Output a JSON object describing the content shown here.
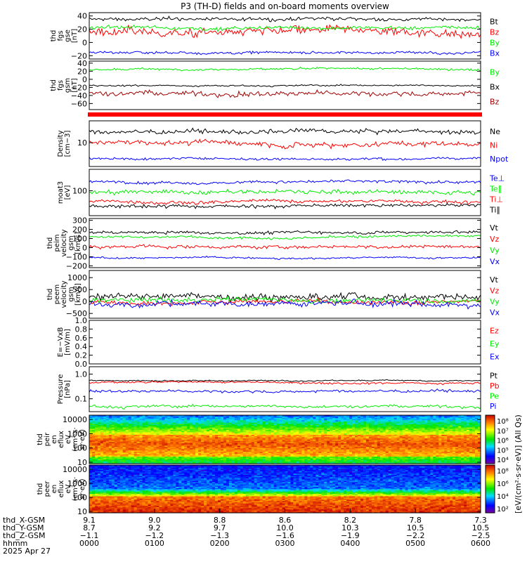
{
  "title": "P3 (TH-D) fields and on-board moments overview",
  "date_label": "2025 Apr 27",
  "colors": {
    "black": "#000000",
    "red": "#ff0000",
    "green": "#00ee00",
    "blue": "#0000ff",
    "darkred": "#a00000"
  },
  "chart_data": [
    {
      "id": "p1",
      "type": "line",
      "ylabel": [
        "thd",
        "fgs",
        "gse",
        "[nT]"
      ],
      "ylim": [
        -25,
        45
      ],
      "ticks": [
        "40",
        "20",
        "0",
        "−20"
      ],
      "tick_values": [
        40,
        20,
        0,
        -20
      ],
      "series": [
        {
          "name": "Bt",
          "color": "#000000",
          "base": 35,
          "amp": 4
        },
        {
          "name": "Bz",
          "color": "#ff0000",
          "base": 15,
          "amp": 10
        },
        {
          "name": "By",
          "color": "#00ee00",
          "base": 22,
          "amp": 4
        },
        {
          "name": "Bx",
          "color": "#0000ff",
          "base": -15,
          "amp": 3
        }
      ],
      "legend": [
        "Bt",
        "Bz",
        "By",
        "Bx"
      ]
    },
    {
      "id": "p2",
      "type": "line",
      "ylabel": [
        "thd",
        "fgs",
        "gsm",
        "[nT]"
      ],
      "ylim": [
        -75,
        45
      ],
      "ticks": [
        "40",
        "20",
        "0",
        "−20",
        "−40",
        "−60"
      ],
      "tick_values": [
        40,
        20,
        0,
        -20,
        -40,
        -60
      ],
      "series": [
        {
          "name": "By",
          "color": "#00ee00",
          "base": 25,
          "amp": 4
        },
        {
          "name": "Bx",
          "color": "#000000",
          "base": -15,
          "amp": 3
        },
        {
          "name": "Bz",
          "color": "#a00000",
          "base": -35,
          "amp": 10
        }
      ],
      "legend": [
        "By",
        "Bx",
        "Bz"
      ]
    },
    {
      "id": "p3",
      "type": "line",
      "log": true,
      "ylabel": [
        "Density",
        "[cm−3]"
      ],
      "ylim": [
        3,
        30
      ],
      "ticks": [
        "10"
      ],
      "tick_values": [
        10
      ],
      "series": [
        {
          "name": "Ne",
          "color": "#000000",
          "base": 17,
          "amp": 3
        },
        {
          "name": "Ni",
          "color": "#ff0000",
          "base": 10,
          "amp": 2
        },
        {
          "name": "Npot",
          "color": "#0000ff",
          "base": 4.5,
          "amp": 0.4
        }
      ],
      "legend": [
        "Ne",
        "Ni",
        "Npot"
      ]
    },
    {
      "id": "p4",
      "type": "line",
      "log": true,
      "ylabel": [
        "moat3",
        "[eV]"
      ],
      "ylim": [
        20,
        400
      ],
      "ticks": [
        "100"
      ],
      "tick_values": [
        100
      ],
      "series": [
        {
          "name": "Te⊥",
          "color": "#0000ff",
          "base": 180,
          "amp": 25
        },
        {
          "name": "Te∥",
          "color": "#00ee00",
          "base": 90,
          "amp": 20
        },
        {
          "name": "Ti⊥",
          "color": "#ff0000",
          "base": 50,
          "amp": 8
        },
        {
          "name": "Ti∥",
          "color": "#000000",
          "base": 38,
          "amp": 6
        }
      ],
      "legend": [
        "Te⊥",
        "Te∥",
        "Ti⊥",
        "Ti∥"
      ]
    },
    {
      "id": "p5",
      "type": "line",
      "ylabel": [
        "thd",
        "peim",
        "velocity",
        "gsm",
        "[km/s]"
      ],
      "ylim": [
        -220,
        320
      ],
      "ticks": [
        "300",
        "200",
        "100",
        "0",
        "−100",
        "−200"
      ],
      "tick_values": [
        300,
        200,
        100,
        0,
        -100,
        -200
      ],
      "series": [
        {
          "name": "Vt",
          "color": "#000000",
          "base": 170,
          "amp": 25
        },
        {
          "name": "Vz",
          "color": "#ff0000",
          "base": 10,
          "amp": 30
        },
        {
          "name": "Vy",
          "color": "#00ee00",
          "base": 120,
          "amp": 20
        },
        {
          "name": "Vx",
          "color": "#0000ff",
          "base": -110,
          "amp": 15
        }
      ],
      "legend": [
        "Vt",
        "Vz",
        "Vy",
        "Vx"
      ]
    },
    {
      "id": "p6",
      "type": "line",
      "ylabel": [
        "thd",
        "peem",
        "velocity",
        "gsm",
        "[km/s]"
      ],
      "ylim": [
        -700,
        1300
      ],
      "ticks": [
        "1000",
        "500",
        "0",
        "−500"
      ],
      "tick_values": [
        1000,
        500,
        0,
        -500
      ],
      "series": [
        {
          "name": "Vt",
          "color": "#000000",
          "base": 250,
          "amp": 220
        },
        {
          "name": "Vz",
          "color": "#ff0000",
          "base": 0,
          "amp": 150
        },
        {
          "name": "Vy",
          "color": "#00ee00",
          "base": 50,
          "amp": 150
        },
        {
          "name": "Vx",
          "color": "#0000ff",
          "base": -100,
          "amp": 200
        }
      ],
      "legend": [
        "Vt",
        "Vz",
        "Vy",
        "Vx"
      ]
    },
    {
      "id": "p7",
      "type": "line",
      "ylabel": [
        "E=−VxB",
        "[mV/m]"
      ],
      "ylim": [
        0,
        1
      ],
      "ticks": [
        "1.0",
        "0.8",
        "0.6",
        "0.4",
        "0.2",
        "0.0"
      ],
      "tick_values": [
        1,
        0.8,
        0.6,
        0.4,
        0.2,
        0
      ],
      "series": [],
      "legend": [
        "Ez",
        "Ey",
        "Ex"
      ]
    },
    {
      "id": "p8",
      "type": "line",
      "log": true,
      "ylabel": [
        "Pressure",
        "[nPa]"
      ],
      "ylim": [
        0.03,
        2
      ],
      "ticks": [
        "1.0",
        "0.1"
      ],
      "tick_values": [
        1,
        0.1
      ],
      "series": [
        {
          "name": "Pt",
          "color": "#000000",
          "base": 0.55,
          "amp": 0.05
        },
        {
          "name": "Pb",
          "color": "#ff0000",
          "base": 0.45,
          "amp": 0.06
        },
        {
          "name": "Pe",
          "color": "#00ee00",
          "base": 0.05,
          "amp": 0.01
        },
        {
          "name": "Pi",
          "color": "#0000ff",
          "base": 0.2,
          "amp": 0.04
        }
      ],
      "legend": [
        "Pt",
        "Pb",
        "Pe",
        "Pi"
      ]
    },
    {
      "id": "p9",
      "type": "heatmap",
      "log": true,
      "ylabel": [
        "thd",
        "peir",
        "en",
        "eflux",
        "eV",
        "(cm²·s·",
        "sr·eV)"
      ],
      "ylim": [
        8,
        20000
      ],
      "ticks": [
        "10000",
        "1000",
        "100",
        "10"
      ],
      "tick_values": [
        10000,
        1000,
        100,
        10
      ]
    },
    {
      "id": "p10",
      "type": "heatmap",
      "log": true,
      "ylabel": [
        "thd",
        "peer",
        "en",
        "eflux",
        "eV",
        "(cm²·s·",
        "sr·eV)"
      ],
      "ylim": [
        8,
        20000
      ],
      "ticks": [
        "10000",
        "1000",
        "100",
        "10"
      ],
      "tick_values": [
        10000,
        1000,
        100,
        10
      ]
    }
  ],
  "colorbars": [
    {
      "ticks": [
        "10⁸",
        "10⁷",
        "10⁶",
        "10⁵",
        "10⁴"
      ]
    },
    {
      "ticks": [
        "10⁸",
        "10⁶",
        "10⁴",
        "10²"
      ]
    }
  ],
  "colorbar_label": "[eV/(cm²·s·sr·eV)] (All Qs)",
  "xaxis": {
    "row_labels": [
      "thd_X-GSM",
      "thd_Y-GSM",
      "thd_Z-GSM",
      "hhmm"
    ],
    "columns": [
      [
        "9.1",
        "8.7",
        "−1.1",
        "0000"
      ],
      [
        "9.0",
        "9.2",
        "−1.2",
        "0100"
      ],
      [
        "8.8",
        "9.7",
        "−1.3",
        "0200"
      ],
      [
        "8.6",
        "10.0",
        "−1.6",
        "0300"
      ],
      [
        "8.2",
        "10.3",
        "−1.9",
        "0400"
      ],
      [
        "7.8",
        "10.5",
        "−2.2",
        "0500"
      ],
      [
        "7.3",
        "10.5",
        "−2.5",
        "0600"
      ]
    ]
  }
}
